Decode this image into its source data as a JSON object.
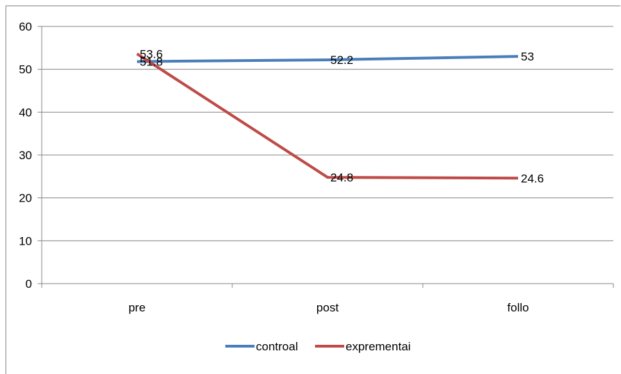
{
  "chart_data": {
    "type": "line",
    "title": "",
    "xlabel": "",
    "ylabel": "",
    "categories": [
      "pre",
      "post",
      "follo"
    ],
    "ylim": [
      0,
      60
    ],
    "yticks": [
      "0",
      "10",
      "20",
      "30",
      "40",
      "50",
      "60"
    ],
    "grid": true,
    "legend_position": "bottom",
    "series": [
      {
        "name": "controal",
        "values": [
          51.8,
          52.2,
          53
        ],
        "labels": [
          "51.8",
          "52.2",
          "53"
        ],
        "color": "#4a7ebb"
      },
      {
        "name": "exprementai",
        "values": [
          53.6,
          24.8,
          24.6
        ],
        "labels": [
          "53.6",
          "24.8",
          "24.6"
        ],
        "color": "#be4b48"
      }
    ]
  }
}
